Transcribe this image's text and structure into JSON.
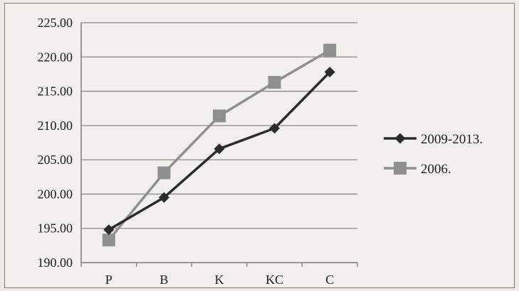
{
  "chart_data": {
    "type": "line",
    "categories": [
      "P",
      "B",
      "K",
      "KC",
      "C"
    ],
    "ylim": [
      190,
      225
    ],
    "yticks": [
      "190.00",
      "195.00",
      "200.00",
      "205.00",
      "210.00",
      "215.00",
      "220.00",
      "225.00"
    ],
    "grid": true,
    "legend_position": "right",
    "series": [
      {
        "name": "2009-2013.",
        "values": [
          194.8,
          199.5,
          206.6,
          209.6,
          217.8
        ],
        "color": "#2b2b2b",
        "marker": "diamond"
      },
      {
        "name": "2006.",
        "values": [
          193.3,
          203.1,
          211.4,
          216.3,
          221.0
        ],
        "color": "#8f8f8f",
        "marker": "square"
      }
    ]
  }
}
